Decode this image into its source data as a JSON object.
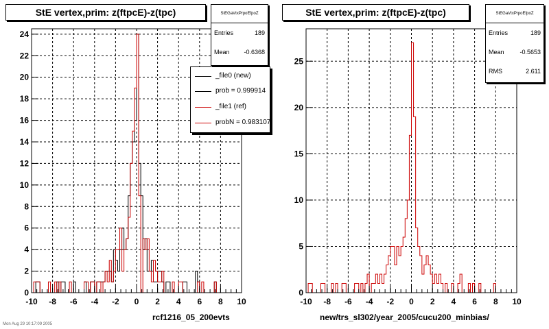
{
  "colors": {
    "new": "#000000",
    "ref": "#cc0000",
    "frame": "#000000",
    "grid": "#000000"
  },
  "left": {
    "title": "StE  vertex,prim: z(ftpcE)-z(tpc)",
    "stats": {
      "name": "StEGaVtxPrpoEfpoZ",
      "entries_label": "Entries",
      "entries": "189",
      "mean_label": "Mean",
      "mean": "-0.6368"
    },
    "legend": [
      {
        "label": "_file0 (new)",
        "color": "#000000"
      },
      {
        "label": "prob = 0.999914",
        "color": "#000000"
      },
      {
        "label": "_file1 (ref)",
        "color": "#cc0000"
      },
      {
        "label": "probN = 0.983107",
        "color": "#cc0000"
      }
    ],
    "footer": "rcf1216_05_200evts"
  },
  "right": {
    "title": "StE  vertex,prim: z(ftpcE)-z(tpc)",
    "stats": {
      "name": "StEGaVtxPrpoEfpoZ",
      "entries_label": "Entries",
      "entries": "189",
      "mean_label": "Mean",
      "mean": "-0.5653",
      "rms_label": "RMS",
      "rms": "2.611"
    },
    "footer": "new/trs_sl302/year_2005/cucu200_minbias/"
  },
  "timestamp": "Mon Aug 29 10:17:09 2005",
  "chart_data": [
    {
      "type": "histogram",
      "title": "StE  vertex,prim: z(ftpcE)-z(tpc)",
      "xlabel": "rcf1216_05_200evts",
      "xlim": [
        -10,
        10
      ],
      "ylim": [
        0,
        24.5
      ],
      "xticks": [
        -10,
        -8,
        -6,
        -4,
        -2,
        0,
        2,
        4,
        6,
        8,
        10
      ],
      "yticks": [
        0,
        2,
        4,
        6,
        8,
        10,
        12,
        14,
        16,
        18,
        20,
        22,
        24
      ],
      "grid": true,
      "legend_position": "top-right",
      "bin_width": 0.2,
      "series": [
        {
          "name": "_file0 (new)",
          "color": "#000000",
          "bins": [
            [
              -9.6,
              1
            ],
            [
              -9.4,
              1
            ],
            [
              -7.6,
              1
            ],
            [
              -7.2,
              1
            ],
            [
              -7.0,
              1
            ],
            [
              -6.0,
              1
            ],
            [
              -5.0,
              1
            ],
            [
              -4.4,
              1
            ],
            [
              -4.2,
              1
            ],
            [
              -3.8,
              1
            ],
            [
              -3.6,
              1
            ],
            [
              -3.4,
              1
            ],
            [
              -3.2,
              1
            ],
            [
              -3.0,
              2
            ],
            [
              -2.8,
              2
            ],
            [
              -2.6,
              2
            ],
            [
              -2.4,
              1
            ],
            [
              -2.2,
              4
            ],
            [
              -2.0,
              3
            ],
            [
              -1.8,
              2
            ],
            [
              -1.6,
              4
            ],
            [
              -1.4,
              6
            ],
            [
              -1.2,
              4
            ],
            [
              -1.0,
              5
            ],
            [
              -0.8,
              9
            ],
            [
              -0.6,
              12
            ],
            [
              -0.4,
              14
            ],
            [
              -0.2,
              16
            ],
            [
              0.0,
              24
            ],
            [
              0.2,
              12
            ],
            [
              0.4,
              9
            ],
            [
              0.6,
              4
            ],
            [
              0.8,
              5
            ],
            [
              1.0,
              2
            ],
            [
              1.2,
              2
            ],
            [
              1.4,
              3
            ],
            [
              1.6,
              1
            ],
            [
              1.8,
              1
            ],
            [
              2.0,
              2
            ],
            [
              2.2,
              2
            ],
            [
              2.4,
              1
            ],
            [
              2.8,
              1
            ],
            [
              3.0,
              1
            ],
            [
              4.4,
              1
            ],
            [
              4.6,
              1
            ],
            [
              5.6,
              2
            ],
            [
              5.8,
              1
            ],
            [
              7.4,
              1
            ]
          ]
        },
        {
          "name": "_file1 (ref)",
          "color": "#cc0000",
          "bins": [
            [
              -9.8,
              1
            ],
            [
              -9.6,
              1
            ],
            [
              -9.4,
              1
            ],
            [
              -8.4,
              1
            ],
            [
              -7.8,
              1
            ],
            [
              -7.4,
              1
            ],
            [
              -6.4,
              1
            ],
            [
              -5.0,
              1
            ],
            [
              -4.8,
              1
            ],
            [
              -4.4,
              1
            ],
            [
              -4.2,
              1
            ],
            [
              -3.8,
              1
            ],
            [
              -3.6,
              1
            ],
            [
              -3.2,
              1
            ],
            [
              -3.0,
              2
            ],
            [
              -2.8,
              1
            ],
            [
              -2.6,
              3
            ],
            [
              -2.4,
              1
            ],
            [
              -2.2,
              2
            ],
            [
              -2.0,
              4
            ],
            [
              -1.8,
              4
            ],
            [
              -1.6,
              6
            ],
            [
              -1.4,
              2
            ],
            [
              -1.2,
              4
            ],
            [
              -1.0,
              5
            ],
            [
              -0.8,
              7
            ],
            [
              -0.6,
              12
            ],
            [
              -0.4,
              15
            ],
            [
              -0.2,
              19
            ],
            [
              0.0,
              24
            ],
            [
              0.2,
              9
            ],
            [
              0.4,
              0
            ],
            [
              0.6,
              5
            ],
            [
              0.8,
              4
            ],
            [
              1.0,
              5
            ],
            [
              1.2,
              2
            ],
            [
              1.4,
              1
            ],
            [
              1.6,
              3
            ],
            [
              1.8,
              2
            ],
            [
              2.0,
              1
            ],
            [
              2.2,
              1
            ],
            [
              2.4,
              2
            ],
            [
              3.4,
              1
            ],
            [
              4.0,
              1
            ],
            [
              4.2,
              1
            ],
            [
              5.8,
              1
            ],
            [
              6.2,
              1
            ],
            [
              7.4,
              1
            ]
          ]
        }
      ]
    },
    {
      "type": "histogram",
      "title": "StE  vertex,prim: z(ftpcE)-z(tpc)",
      "xlabel": "new/trs_sl302/year_2005/cucu200_minbias/",
      "xlim": [
        -10,
        10
      ],
      "ylim": [
        0,
        28.5
      ],
      "xticks": [
        -10,
        -8,
        -6,
        -4,
        -2,
        0,
        2,
        4,
        6,
        8,
        10
      ],
      "yticks": [
        0,
        5,
        10,
        15,
        20,
        25
      ],
      "grid": true,
      "bin_width": 0.2,
      "series": [
        {
          "name": "",
          "color": "#cc0000",
          "bins": [
            [
              -9.8,
              1
            ],
            [
              -9.6,
              1
            ],
            [
              -8.6,
              1
            ],
            [
              -8.4,
              1
            ],
            [
              -7.6,
              1
            ],
            [
              -7.2,
              1
            ],
            [
              -6.6,
              1
            ],
            [
              -6.4,
              1
            ],
            [
              -5.4,
              1
            ],
            [
              -5.2,
              1
            ],
            [
              -4.8,
              1
            ],
            [
              -4.4,
              1
            ],
            [
              -4.2,
              2
            ],
            [
              -3.8,
              1
            ],
            [
              -3.6,
              1
            ],
            [
              -3.4,
              2
            ],
            [
              -3.2,
              1
            ],
            [
              -3.0,
              2
            ],
            [
              -2.8,
              1
            ],
            [
              -2.6,
              2
            ],
            [
              -2.4,
              3
            ],
            [
              -2.2,
              4
            ],
            [
              -2.0,
              5
            ],
            [
              -1.8,
              5
            ],
            [
              -1.6,
              3
            ],
            [
              -1.4,
              5
            ],
            [
              -1.2,
              4
            ],
            [
              -1.0,
              5
            ],
            [
              -0.8,
              6
            ],
            [
              -0.6,
              8
            ],
            [
              -0.4,
              10
            ],
            [
              -0.2,
              17
            ],
            [
              0.0,
              27
            ],
            [
              0.2,
              19
            ],
            [
              0.4,
              7
            ],
            [
              0.6,
              5
            ],
            [
              0.8,
              4
            ],
            [
              1.0,
              2
            ],
            [
              1.2,
              3
            ],
            [
              1.4,
              4
            ],
            [
              1.6,
              3
            ],
            [
              1.8,
              2
            ],
            [
              2.0,
              1
            ],
            [
              2.2,
              2
            ],
            [
              2.4,
              1
            ],
            [
              2.6,
              2
            ],
            [
              2.8,
              1
            ],
            [
              3.2,
              1
            ],
            [
              3.8,
              1
            ],
            [
              4.4,
              1
            ],
            [
              4.6,
              2
            ],
            [
              5.4,
              1
            ],
            [
              5.8,
              1
            ],
            [
              6.4,
              1
            ],
            [
              7.8,
              1
            ]
          ]
        }
      ]
    }
  ]
}
